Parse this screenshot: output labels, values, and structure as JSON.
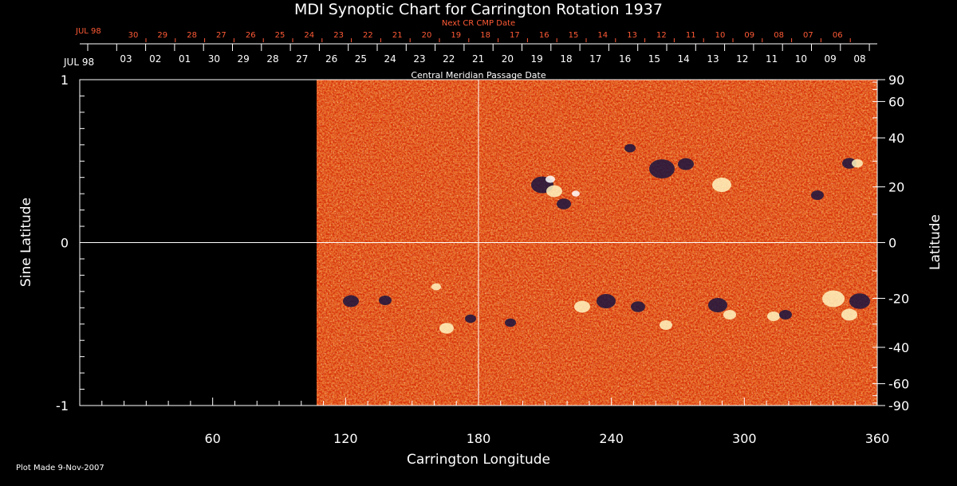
{
  "chart_data": {
    "type": "heatmap",
    "title": "MDI Synoptic Chart for Carrington Rotation 1937",
    "xlabel": "Carrington Longitude",
    "ylabel_left": "Sine Latitude",
    "ylabel_right": "Latitude",
    "xlim": [
      0,
      360
    ],
    "ylim": [
      -1,
      1
    ],
    "x_ticks": [
      60,
      120,
      180,
      240,
      300,
      360
    ],
    "y_ticks_left": [
      1,
      0,
      -1
    ],
    "y_ticks_right": [
      90,
      60,
      40,
      20,
      0,
      -20,
      -40,
      -60,
      -90
    ],
    "data_start_longitude": 107,
    "top_axis": {
      "label": "Central Meridian Passage Date",
      "month_label": "JUL 98",
      "dates": [
        "03",
        "02",
        "01",
        "30",
        "29",
        "28",
        "27",
        "26",
        "25",
        "24",
        "23",
        "22",
        "21",
        "20",
        "19",
        "18",
        "17",
        "16",
        "15",
        "14",
        "13",
        "12",
        "11",
        "10",
        "09",
        "08"
      ]
    },
    "next_cr_axis": {
      "label": "Next CR CMP Date",
      "month_label": "JUL 98",
      "dates": [
        "30",
        "29",
        "28",
        "27",
        "26",
        "25",
        "24",
        "23",
        "22",
        "21",
        "20",
        "19",
        "18",
        "17",
        "16",
        "15",
        "14",
        "13",
        "12",
        "11",
        "10",
        "09",
        "08",
        "07",
        "06"
      ]
    },
    "colors": {
      "background": "#000000",
      "field_base": "#e8400c",
      "positive": "#fff4c0",
      "negative": "#1a1440",
      "annotation_red": "#ff5a36"
    }
  },
  "footer": {
    "plot_made": "Plot Made  9-Nov-2007"
  }
}
